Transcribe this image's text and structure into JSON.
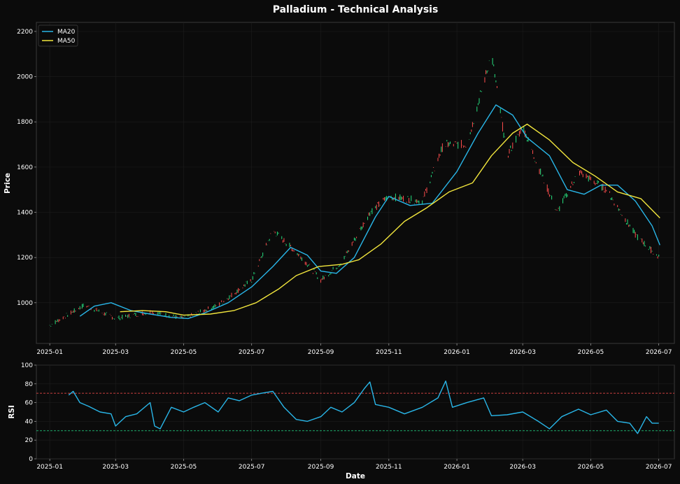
{
  "chart_data": [
    {
      "type": "line",
      "title": "Palladium - Technical Analysis",
      "ylabel": "Price",
      "xlabel": "",
      "x_range": [
        "2024-12-20",
        "2026-07-15"
      ],
      "ylim": [
        820,
        2240
      ],
      "yticks": [
        1000,
        1200,
        1400,
        1600,
        1800,
        2000,
        2200
      ],
      "xtick_labels": [
        "2025-01",
        "2025-03",
        "2025-05",
        "2025-07",
        "2025-09",
        "2025-11",
        "2026-01",
        "2026-03",
        "2026-05",
        "2026-07"
      ],
      "grid": true,
      "legend": "top-left",
      "candles": {
        "up_color": "#26e07f",
        "down_color": "#ff4d4d",
        "description_points": [
          [
            "2025-01-01",
            900
          ],
          [
            "2025-02-01",
            990
          ],
          [
            "2025-03-01",
            930
          ],
          [
            "2025-04-01",
            960
          ],
          [
            "2025-05-01",
            930
          ],
          [
            "2025-06-01",
            990
          ],
          [
            "2025-07-01",
            1100
          ],
          [
            "2025-07-20",
            1320
          ],
          [
            "2025-08-15",
            1200
          ],
          [
            "2025-09-01",
            1100
          ],
          [
            "2025-09-20",
            1180
          ],
          [
            "2025-10-15",
            1400
          ],
          [
            "2025-11-01",
            1470
          ],
          [
            "2025-12-01",
            1450
          ],
          [
            "2025-12-20",
            1700
          ],
          [
            "2026-01-10",
            1700
          ],
          [
            "2026-02-01",
            2100
          ],
          [
            "2026-02-15",
            1650
          ],
          [
            "2026-03-01",
            1780
          ],
          [
            "2026-03-15",
            1600
          ],
          [
            "2026-04-01",
            1400
          ],
          [
            "2026-04-20",
            1580
          ],
          [
            "2026-05-15",
            1500
          ],
          [
            "2026-06-10",
            1300
          ],
          [
            "2026-07-01",
            1200
          ]
        ]
      },
      "series": [
        {
          "name": "MA20",
          "color": "#29b6e8",
          "points": [
            [
              "2025-01-28",
              940
            ],
            [
              "2025-02-10",
              985
            ],
            [
              "2025-02-25",
              1000
            ],
            [
              "2025-03-15",
              965
            ],
            [
              "2025-04-01",
              950
            ],
            [
              "2025-04-20",
              935
            ],
            [
              "2025-05-05",
              930
            ],
            [
              "2025-05-20",
              955
            ],
            [
              "2025-06-10",
              1000
            ],
            [
              "2025-07-01",
              1070
            ],
            [
              "2025-07-20",
              1160
            ],
            [
              "2025-08-05",
              1245
            ],
            [
              "2025-08-20",
              1210
            ],
            [
              "2025-09-01",
              1140
            ],
            [
              "2025-09-15",
              1130
            ],
            [
              "2025-10-01",
              1200
            ],
            [
              "2025-10-20",
              1380
            ],
            [
              "2025-11-01",
              1470
            ],
            [
              "2025-11-20",
              1430
            ],
            [
              "2025-12-10",
              1440
            ],
            [
              "2026-01-01",
              1580
            ],
            [
              "2026-01-20",
              1750
            ],
            [
              "2026-02-05",
              1875
            ],
            [
              "2026-02-20",
              1830
            ],
            [
              "2026-03-05",
              1730
            ],
            [
              "2026-03-25",
              1650
            ],
            [
              "2026-04-10",
              1500
            ],
            [
              "2026-04-25",
              1480
            ],
            [
              "2026-05-10",
              1520
            ],
            [
              "2026-05-25",
              1520
            ],
            [
              "2026-06-10",
              1450
            ],
            [
              "2026-06-25",
              1340
            ],
            [
              "2026-07-02",
              1255
            ]
          ]
        },
        {
          "name": "MA50",
          "color": "#f2e63d",
          "points": [
            [
              "2025-03-05",
              960
            ],
            [
              "2025-03-25",
              965
            ],
            [
              "2025-04-15",
              960
            ],
            [
              "2025-05-01",
              945
            ],
            [
              "2025-05-25",
              950
            ],
            [
              "2025-06-15",
              965
            ],
            [
              "2025-07-05",
              1000
            ],
            [
              "2025-07-25",
              1060
            ],
            [
              "2025-08-10",
              1120
            ],
            [
              "2025-08-30",
              1160
            ],
            [
              "2025-09-20",
              1170
            ],
            [
              "2025-10-05",
              1190
            ],
            [
              "2025-10-25",
              1260
            ],
            [
              "2025-11-15",
              1360
            ],
            [
              "2025-12-05",
              1420
            ],
            [
              "2025-12-25",
              1490
            ],
            [
              "2026-01-15",
              1530
            ],
            [
              "2026-02-01",
              1650
            ],
            [
              "2026-02-20",
              1750
            ],
            [
              "2026-03-05",
              1790
            ],
            [
              "2026-03-25",
              1720
            ],
            [
              "2026-04-15",
              1620
            ],
            [
              "2026-05-05",
              1560
            ],
            [
              "2026-05-25",
              1490
            ],
            [
              "2026-06-15",
              1460
            ],
            [
              "2026-07-02",
              1375
            ]
          ]
        }
      ]
    },
    {
      "type": "line",
      "title": "",
      "ylabel": "RSI",
      "xlabel": "Date",
      "ylim": [
        0,
        100
      ],
      "yticks": [
        0,
        20,
        40,
        60,
        80,
        100
      ],
      "xtick_labels": [
        "2025-01",
        "2025-03",
        "2025-05",
        "2025-07",
        "2025-09",
        "2025-11",
        "2026-01",
        "2026-03",
        "2026-05",
        "2026-07"
      ],
      "overbought": 70,
      "oversold": 30,
      "overbought_color": "#e04545",
      "oversold_color": "#21c47a",
      "series": [
        {
          "color": "#29b6e8",
          "points": [
            [
              "2025-01-18",
              68
            ],
            [
              "2025-01-22",
              72
            ],
            [
              "2025-01-28",
              60
            ],
            [
              "2025-02-05",
              56
            ],
            [
              "2025-02-15",
              50
            ],
            [
              "2025-02-25",
              48
            ],
            [
              "2025-03-01",
              35
            ],
            [
              "2025-03-10",
              45
            ],
            [
              "2025-03-20",
              48
            ],
            [
              "2025-04-01",
              60
            ],
            [
              "2025-04-05",
              35
            ],
            [
              "2025-04-10",
              32
            ],
            [
              "2025-04-20",
              55
            ],
            [
              "2025-05-01",
              50
            ],
            [
              "2025-05-10",
              55
            ],
            [
              "2025-05-20",
              60
            ],
            [
              "2025-06-01",
              50
            ],
            [
              "2025-06-10",
              65
            ],
            [
              "2025-06-20",
              62
            ],
            [
              "2025-07-01",
              68
            ],
            [
              "2025-07-10",
              70
            ],
            [
              "2025-07-20",
              72
            ],
            [
              "2025-07-30",
              55
            ],
            [
              "2025-08-10",
              42
            ],
            [
              "2025-08-20",
              40
            ],
            [
              "2025-09-01",
              45
            ],
            [
              "2025-09-10",
              55
            ],
            [
              "2025-09-20",
              50
            ],
            [
              "2025-10-01",
              60
            ],
            [
              "2025-10-10",
              75
            ],
            [
              "2025-10-15",
              82
            ],
            [
              "2025-10-20",
              58
            ],
            [
              "2025-11-01",
              55
            ],
            [
              "2025-11-15",
              48
            ],
            [
              "2025-12-01",
              55
            ],
            [
              "2025-12-15",
              65
            ],
            [
              "2025-12-22",
              83
            ],
            [
              "2025-12-28",
              55
            ],
            [
              "2026-01-10",
              60
            ],
            [
              "2026-01-25",
              65
            ],
            [
              "2026-02-01",
              46
            ],
            [
              "2026-02-15",
              47
            ],
            [
              "2026-03-01",
              50
            ],
            [
              "2026-03-15",
              40
            ],
            [
              "2026-03-25",
              32
            ],
            [
              "2026-04-05",
              45
            ],
            [
              "2026-04-20",
              53
            ],
            [
              "2026-05-01",
              47
            ],
            [
              "2026-05-15",
              52
            ],
            [
              "2026-05-25",
              40
            ],
            [
              "2026-06-05",
              38
            ],
            [
              "2026-06-12",
              27
            ],
            [
              "2026-06-20",
              45
            ],
            [
              "2026-06-25",
              38
            ],
            [
              "2026-07-01",
              38
            ]
          ]
        }
      ]
    }
  ]
}
